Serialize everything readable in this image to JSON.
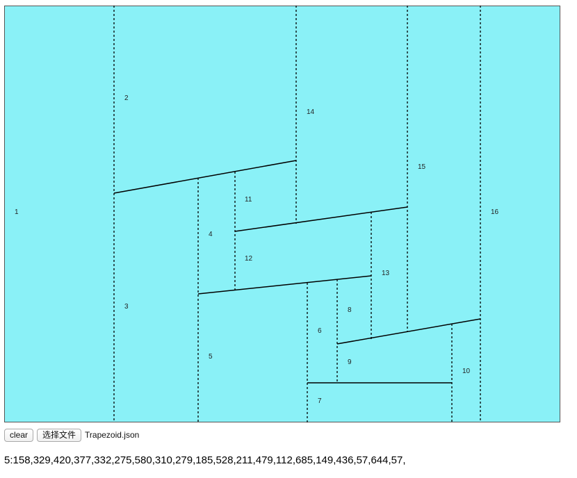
{
  "colors": {
    "background": "#8af1f7",
    "border": "#555555",
    "line": "#000000",
    "label": "#222222"
  },
  "diagram": {
    "regions": [
      {
        "label": "1"
      },
      {
        "label": "2"
      },
      {
        "label": "3"
      },
      {
        "label": "4"
      },
      {
        "label": "5"
      },
      {
        "label": "6"
      },
      {
        "label": "7"
      },
      {
        "label": "8"
      },
      {
        "label": "9"
      },
      {
        "label": "10"
      },
      {
        "label": "11"
      },
      {
        "label": "12"
      },
      {
        "label": "13"
      },
      {
        "label": "14"
      },
      {
        "label": "15"
      },
      {
        "label": "16"
      }
    ]
  },
  "controls": {
    "clear_label": "clear",
    "choose_file_label": "选择文件",
    "file_name": "Trapezoid.json"
  },
  "output": {
    "text": "5:158,329,420,377,332,275,580,310,279,185,528,211,479,112,685,149,436,57,644,57,"
  }
}
